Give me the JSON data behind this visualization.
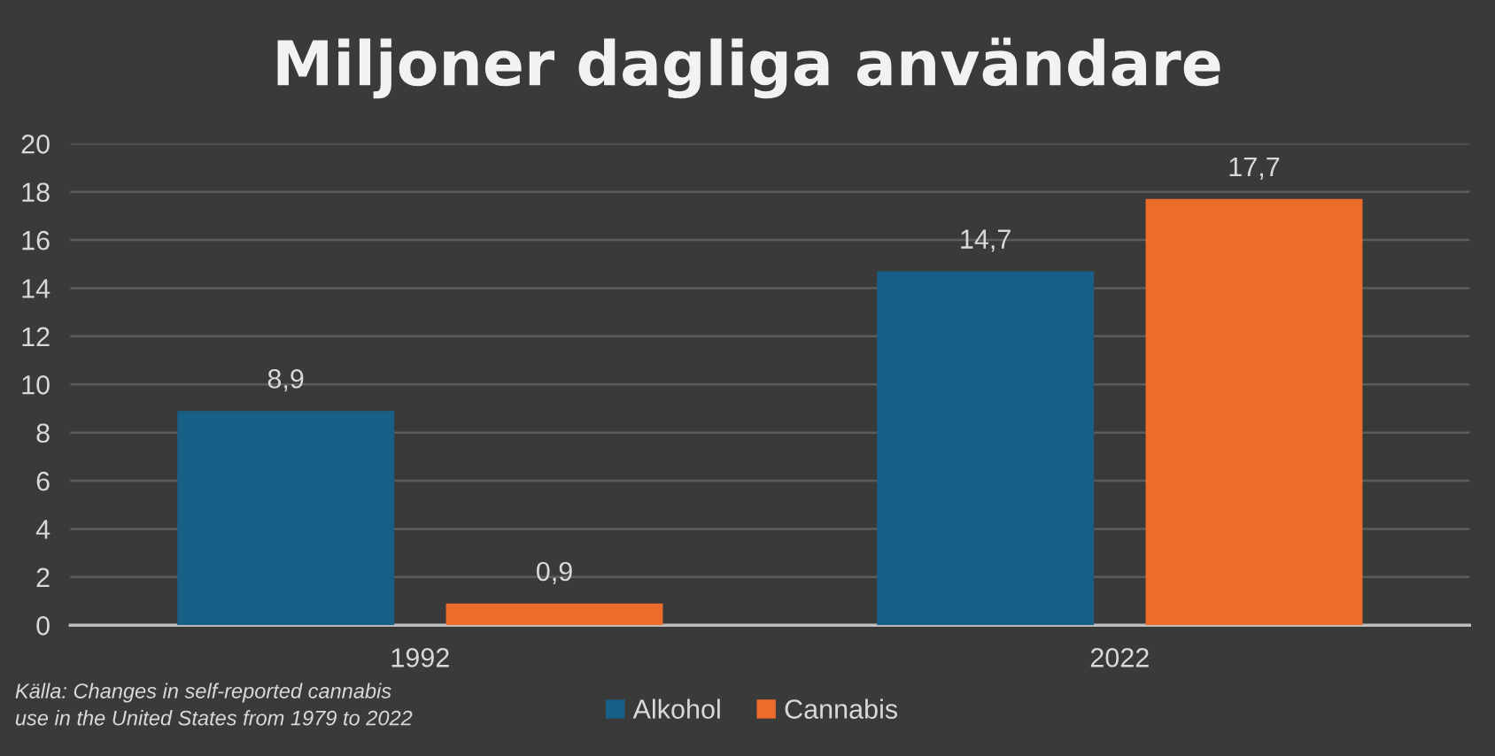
{
  "chart_data": {
    "type": "bar",
    "title": "Miljoner dagliga användare",
    "categories": [
      "1992",
      "2022"
    ],
    "series": [
      {
        "name": "Alkohol",
        "color": "#175f86",
        "values": [
          8.9,
          14.7
        ],
        "value_labels": [
          "8,9",
          "14,7"
        ]
      },
      {
        "name": "Cannabis",
        "color": "#ec6c2b",
        "values": [
          0.9,
          17.7
        ],
        "value_labels": [
          "0,9",
          "17,7"
        ]
      }
    ],
    "ylim": [
      0,
      20
    ],
    "yticks": [
      0,
      2,
      4,
      6,
      8,
      10,
      12,
      14,
      16,
      18,
      20
    ],
    "grid": "y",
    "legend": "bottom",
    "annotations": [
      "Källa: Changes in self-reported cannabis\nuse in the United States from 1979 to 2022"
    ]
  }
}
